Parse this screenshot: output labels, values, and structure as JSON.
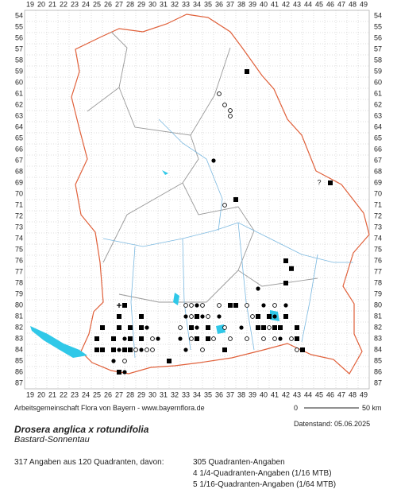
{
  "columns": [
    19,
    20,
    21,
    22,
    23,
    24,
    25,
    26,
    27,
    28,
    29,
    30,
    31,
    32,
    33,
    34,
    35,
    36,
    37,
    38,
    39,
    40,
    41,
    42,
    43,
    44,
    45,
    46,
    47,
    48,
    49
  ],
  "rows": [
    54,
    55,
    56,
    57,
    58,
    59,
    60,
    61,
    62,
    63,
    64,
    65,
    66,
    67,
    68,
    69,
    70,
    71,
    72,
    73,
    74,
    75,
    76,
    77,
    78,
    79,
    80,
    81,
    82,
    83,
    84,
    85,
    86,
    87
  ],
  "markers": [
    {
      "x": 38.5,
      "y": 59,
      "symbol": "square"
    },
    {
      "x": 36,
      "y": 61,
      "symbol": "ring"
    },
    {
      "x": 36.5,
      "y": 62,
      "symbol": "ring"
    },
    {
      "x": 37,
      "y": 62.5,
      "symbol": "ring"
    },
    {
      "x": 37,
      "y": 63,
      "symbol": "ring"
    },
    {
      "x": 35.5,
      "y": 67,
      "symbol": "dot"
    },
    {
      "x": 45,
      "y": 69,
      "symbol": "?"
    },
    {
      "x": 46,
      "y": 69,
      "symbol": "square"
    },
    {
      "x": 36.5,
      "y": 71,
      "symbol": "ring"
    },
    {
      "x": 37.5,
      "y": 70.5,
      "symbol": "square"
    },
    {
      "x": 42,
      "y": 76,
      "symbol": "square"
    },
    {
      "x": 42.5,
      "y": 76.7,
      "symbol": "square"
    },
    {
      "x": 42,
      "y": 78,
      "symbol": "square"
    },
    {
      "x": 39.5,
      "y": 78.5,
      "symbol": "dot"
    },
    {
      "x": 27,
      "y": 80,
      "symbol": "plus"
    },
    {
      "x": 27.5,
      "y": 80,
      "symbol": "square"
    },
    {
      "x": 33,
      "y": 80,
      "symbol": "ring"
    },
    {
      "x": 33.5,
      "y": 80,
      "symbol": "ring"
    },
    {
      "x": 34,
      "y": 80,
      "symbol": "dot"
    },
    {
      "x": 34.5,
      "y": 80,
      "symbol": "ring"
    },
    {
      "x": 36,
      "y": 80,
      "symbol": "ring"
    },
    {
      "x": 37,
      "y": 80,
      "symbol": "square"
    },
    {
      "x": 37.5,
      "y": 80,
      "symbol": "square"
    },
    {
      "x": 38.5,
      "y": 80,
      "symbol": "ring"
    },
    {
      "x": 40,
      "y": 80,
      "symbol": "dot"
    },
    {
      "x": 41,
      "y": 80,
      "symbol": "ring"
    },
    {
      "x": 42,
      "y": 80,
      "symbol": "dot"
    },
    {
      "x": 27,
      "y": 81,
      "symbol": "square"
    },
    {
      "x": 29,
      "y": 81,
      "symbol": "square"
    },
    {
      "x": 33,
      "y": 81,
      "symbol": "dot"
    },
    {
      "x": 33.5,
      "y": 81,
      "symbol": "ring"
    },
    {
      "x": 34,
      "y": 81,
      "symbol": "square"
    },
    {
      "x": 34.5,
      "y": 81,
      "symbol": "dot"
    },
    {
      "x": 35,
      "y": 81,
      "symbol": "ring"
    },
    {
      "x": 36,
      "y": 81,
      "symbol": "dot"
    },
    {
      "x": 39,
      "y": 81,
      "symbol": "ring"
    },
    {
      "x": 39.5,
      "y": 81,
      "symbol": "square"
    },
    {
      "x": 40.5,
      "y": 81,
      "symbol": "square"
    },
    {
      "x": 41,
      "y": 81,
      "symbol": "dot"
    },
    {
      "x": 42,
      "y": 81,
      "symbol": "square"
    },
    {
      "x": 25.5,
      "y": 82,
      "symbol": "square"
    },
    {
      "x": 27,
      "y": 82,
      "symbol": "square"
    },
    {
      "x": 28,
      "y": 82,
      "symbol": "square"
    },
    {
      "x": 29,
      "y": 82,
      "symbol": "square"
    },
    {
      "x": 29.5,
      "y": 82,
      "symbol": "dot"
    },
    {
      "x": 32.5,
      "y": 82,
      "symbol": "ring"
    },
    {
      "x": 33.5,
      "y": 82,
      "symbol": "square"
    },
    {
      "x": 34,
      "y": 82,
      "symbol": "dot"
    },
    {
      "x": 35,
      "y": 82,
      "symbol": "square"
    },
    {
      "x": 36.5,
      "y": 82,
      "symbol": "ring"
    },
    {
      "x": 38,
      "y": 82,
      "symbol": "dot"
    },
    {
      "x": 39.5,
      "y": 82,
      "symbol": "square"
    },
    {
      "x": 40,
      "y": 82,
      "symbol": "square"
    },
    {
      "x": 40.5,
      "y": 82,
      "symbol": "ring"
    },
    {
      "x": 41,
      "y": 82,
      "symbol": "square"
    },
    {
      "x": 41.5,
      "y": 82,
      "symbol": "square"
    },
    {
      "x": 43,
      "y": 82,
      "symbol": "square"
    },
    {
      "x": 25,
      "y": 83,
      "symbol": "square"
    },
    {
      "x": 26.5,
      "y": 83,
      "symbol": "square"
    },
    {
      "x": 27.5,
      "y": 83,
      "symbol": "dot"
    },
    {
      "x": 28,
      "y": 83,
      "symbol": "square"
    },
    {
      "x": 29,
      "y": 83,
      "symbol": "square"
    },
    {
      "x": 30,
      "y": 83,
      "symbol": "ring"
    },
    {
      "x": 30.5,
      "y": 83,
      "symbol": "dot"
    },
    {
      "x": 32.5,
      "y": 83,
      "symbol": "dot"
    },
    {
      "x": 33.5,
      "y": 83,
      "symbol": "ring"
    },
    {
      "x": 34,
      "y": 83,
      "symbol": "square"
    },
    {
      "x": 35,
      "y": 83,
      "symbol": "square"
    },
    {
      "x": 35.5,
      "y": 83,
      "symbol": "ring"
    },
    {
      "x": 37,
      "y": 83,
      "symbol": "ring"
    },
    {
      "x": 38.5,
      "y": 83,
      "symbol": "ring"
    },
    {
      "x": 40,
      "y": 83,
      "symbol": "ring"
    },
    {
      "x": 41,
      "y": 83,
      "symbol": "ring"
    },
    {
      "x": 41.5,
      "y": 83,
      "symbol": "dot"
    },
    {
      "x": 42.5,
      "y": 83,
      "symbol": "ring"
    },
    {
      "x": 43,
      "y": 83,
      "symbol": "square"
    },
    {
      "x": 25,
      "y": 84,
      "symbol": "square"
    },
    {
      "x": 25.5,
      "y": 84,
      "symbol": "square"
    },
    {
      "x": 26.5,
      "y": 84,
      "symbol": "square"
    },
    {
      "x": 27,
      "y": 84,
      "symbol": "dot"
    },
    {
      "x": 27.5,
      "y": 84,
      "symbol": "square"
    },
    {
      "x": 28,
      "y": 84,
      "symbol": "square"
    },
    {
      "x": 28.5,
      "y": 84,
      "symbol": "ring"
    },
    {
      "x": 29,
      "y": 84,
      "symbol": "dot"
    },
    {
      "x": 29.5,
      "y": 84,
      "symbol": "ring"
    },
    {
      "x": 30,
      "y": 84,
      "symbol": "ring"
    },
    {
      "x": 33,
      "y": 84,
      "symbol": "dot"
    },
    {
      "x": 34.5,
      "y": 84,
      "symbol": "ring"
    },
    {
      "x": 36.5,
      "y": 84,
      "symbol": "square"
    },
    {
      "x": 43,
      "y": 84,
      "symbol": "ring"
    },
    {
      "x": 43.5,
      "y": 84,
      "symbol": "square"
    },
    {
      "x": 26.5,
      "y": 85,
      "symbol": "dot"
    },
    {
      "x": 27.5,
      "y": 85,
      "symbol": "ring"
    },
    {
      "x": 31.5,
      "y": 85,
      "symbol": "square"
    },
    {
      "x": 27,
      "y": 86,
      "symbol": "square"
    },
    {
      "x": 27.5,
      "y": 86,
      "symbol": "dot"
    }
  ],
  "credit": "Arbeitsgemeinschaft Flora von Bayern - www.bayernflora.de",
  "scale": {
    "start": 0,
    "end": "50 km"
  },
  "data_date": "Datenstand: 05.06.2025",
  "species": {
    "name": "Drosera anglica x rotundifolia",
    "common_name": "Bastard-Sonnentau"
  },
  "summary": {
    "total": "317 Angaben aus 120 Quadranten, davon:",
    "items": [
      "305 Quadranten-Angaben",
      "4 1/4-Quadranten-Angaben (1/16 MTB)",
      "5 1/16-Quadranten-Angaben (1/64 MTB)"
    ]
  }
}
